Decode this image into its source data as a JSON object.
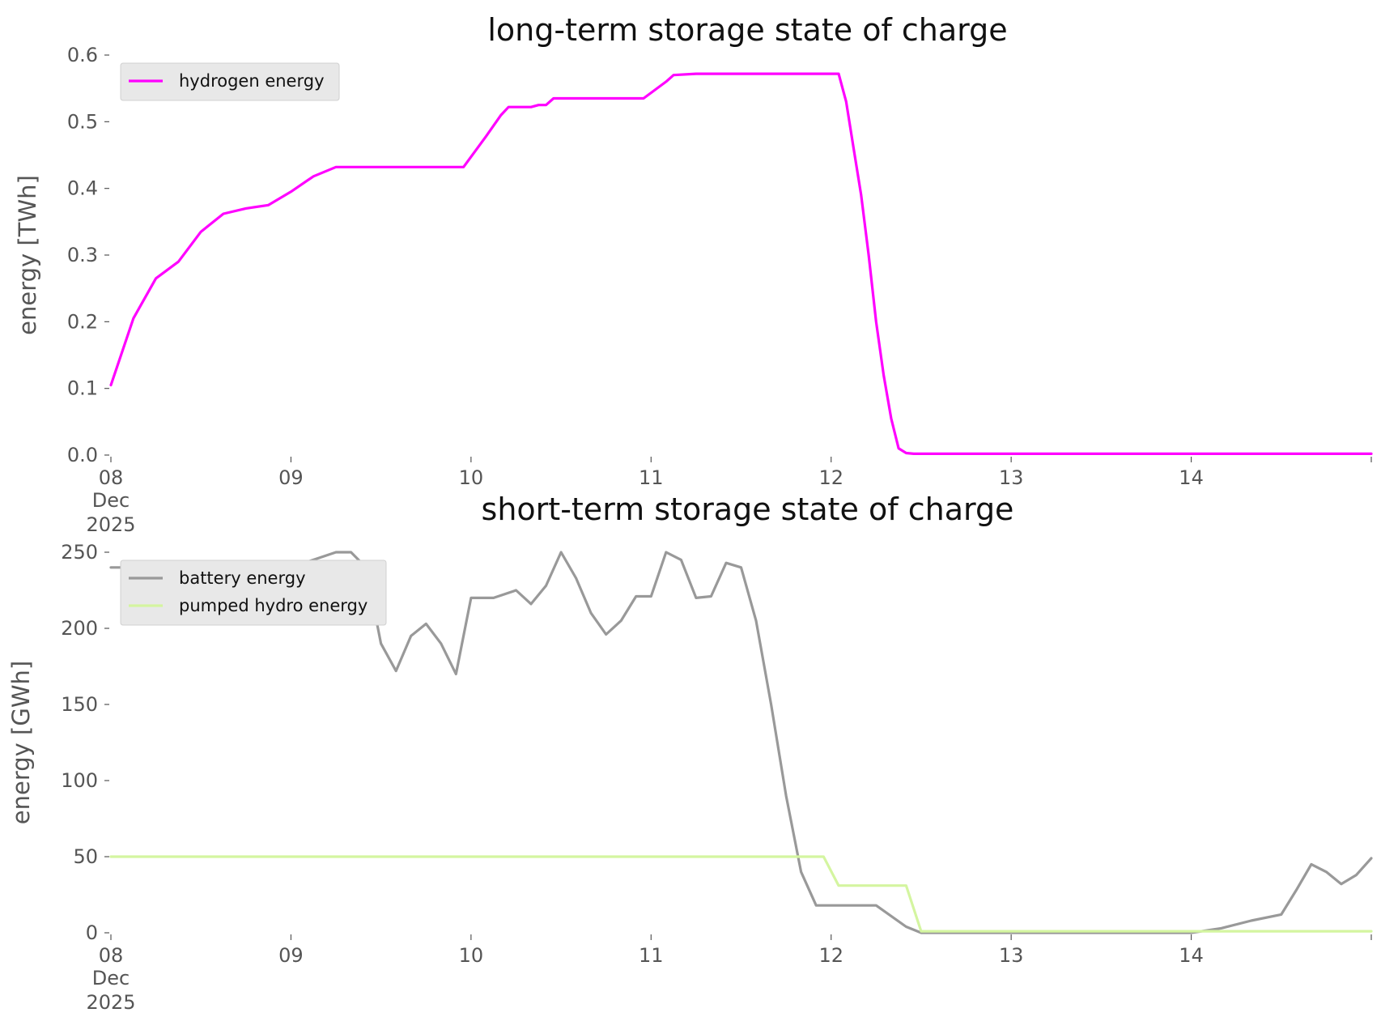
{
  "chart_data": [
    {
      "type": "line",
      "title": "long-term storage state of charge",
      "ylabel": "energy [TWh]",
      "xlabel": "",
      "xlim": [
        "2025-12-08",
        "2025-12-15"
      ],
      "ylim": [
        0,
        0.6
      ],
      "yticks": [
        "0.0",
        "0.1",
        "0.2",
        "0.3",
        "0.4",
        "0.5",
        "0.6"
      ],
      "xticks": [
        {
          "main": "08",
          "sub": "Dec",
          "sub2": "2025"
        },
        {
          "main": "09"
        },
        {
          "main": "10"
        },
        {
          "main": "11"
        },
        {
          "main": "12"
        },
        {
          "main": "13"
        },
        {
          "main": "14"
        }
      ],
      "grid": false,
      "legend_position": "top-left",
      "series": [
        {
          "name": "hydrogen energy",
          "color": "#ff00ff",
          "x": [
            "2025-12-08 00:00",
            "2025-12-08 03:00",
            "2025-12-08 06:00",
            "2025-12-08 09:00",
            "2025-12-08 12:00",
            "2025-12-08 15:00",
            "2025-12-08 18:00",
            "2025-12-08 21:00",
            "2025-12-09 00:00",
            "2025-12-09 03:00",
            "2025-12-09 06:00",
            "2025-12-09 12:00",
            "2025-12-09 18:00",
            "2025-12-09 23:00",
            "2025-12-10 02:00",
            "2025-12-10 04:00",
            "2025-12-10 05:00",
            "2025-12-10 06:00",
            "2025-12-10 08:00",
            "2025-12-10 09:00",
            "2025-12-10 10:00",
            "2025-12-10 11:00",
            "2025-12-10 12:00",
            "2025-12-10 18:00",
            "2025-12-10 23:00",
            "2025-12-11 02:00",
            "2025-12-11 03:00",
            "2025-12-11 06:00",
            "2025-12-11 12:00",
            "2025-12-11 18:00",
            "2025-12-12 01:00",
            "2025-12-12 02:00",
            "2025-12-12 03:00",
            "2025-12-12 04:00",
            "2025-12-12 05:00",
            "2025-12-12 06:00",
            "2025-12-12 07:00",
            "2025-12-12 08:00",
            "2025-12-12 09:00",
            "2025-12-12 10:00",
            "2025-12-12 11:00",
            "2025-12-13 00:00",
            "2025-12-14 00:00",
            "2025-12-15 00:00"
          ],
          "y": [
            0.105,
            0.205,
            0.265,
            0.29,
            0.335,
            0.362,
            0.37,
            0.375,
            0.395,
            0.418,
            0.432,
            0.432,
            0.432,
            0.432,
            0.478,
            0.51,
            0.522,
            0.522,
            0.522,
            0.525,
            0.525,
            0.535,
            0.535,
            0.535,
            0.535,
            0.56,
            0.57,
            0.572,
            0.572,
            0.572,
            0.572,
            0.53,
            0.46,
            0.39,
            0.3,
            0.2,
            0.12,
            0.055,
            0.01,
            0.003,
            0.002,
            0.002,
            0.002,
            0.002
          ]
        }
      ]
    },
    {
      "type": "line",
      "title": "short-term storage state of charge",
      "ylabel": "energy [GWh]",
      "xlabel": "",
      "xlim": [
        "2025-12-08",
        "2025-12-15"
      ],
      "ylim": [
        0,
        250
      ],
      "yticks": [
        "0",
        "50",
        "100",
        "150",
        "200",
        "250"
      ],
      "xticks": [
        {
          "main": "08",
          "sub": "Dec",
          "sub2": "2025"
        },
        {
          "main": "09"
        },
        {
          "main": "10"
        },
        {
          "main": "11"
        },
        {
          "main": "12"
        },
        {
          "main": "13"
        },
        {
          "main": "14"
        }
      ],
      "grid": false,
      "legend_position": "top-left",
      "series": [
        {
          "name": "battery energy",
          "color": "#999999",
          "x": [
            "2025-12-08 00:00",
            "2025-12-09 00:00",
            "2025-12-09 06:00",
            "2025-12-09 08:00",
            "2025-12-09 10:00",
            "2025-12-09 12:00",
            "2025-12-09 14:00",
            "2025-12-09 16:00",
            "2025-12-09 18:00",
            "2025-12-09 20:00",
            "2025-12-09 22:00",
            "2025-12-10 00:00",
            "2025-12-10 03:00",
            "2025-12-10 06:00",
            "2025-12-10 08:00",
            "2025-12-10 10:00",
            "2025-12-10 12:00",
            "2025-12-10 14:00",
            "2025-12-10 16:00",
            "2025-12-10 18:00",
            "2025-12-10 20:00",
            "2025-12-10 22:00",
            "2025-12-11 00:00",
            "2025-12-11 02:00",
            "2025-12-11 04:00",
            "2025-12-11 06:00",
            "2025-12-11 08:00",
            "2025-12-11 10:00",
            "2025-12-11 12:00",
            "2025-12-11 14:00",
            "2025-12-11 16:00",
            "2025-12-11 18:00",
            "2025-12-11 20:00",
            "2025-12-11 22:00",
            "2025-12-12 00:00",
            "2025-12-12 06:00",
            "2025-12-12 10:00",
            "2025-12-12 12:00",
            "2025-12-13 00:00",
            "2025-12-14 00:00",
            "2025-12-14 04:00",
            "2025-12-14 08:00",
            "2025-12-14 12:00",
            "2025-12-14 14:00",
            "2025-12-14 16:00",
            "2025-12-14 18:00",
            "2025-12-14 20:00",
            "2025-12-14 22:00",
            "2025-12-15 00:00"
          ],
          "y": [
            240,
            240,
            250,
            250,
            240,
            190,
            172,
            195,
            203,
            190,
            170,
            220,
            220,
            225,
            216,
            228,
            250,
            233,
            210,
            196,
            205,
            221,
            221,
            250,
            245,
            220,
            221,
            243,
            240,
            205,
            150,
            90,
            40,
            18,
            18,
            18,
            4,
            0,
            0,
            0,
            3,
            8,
            12,
            28,
            45,
            40,
            32,
            38,
            49
          ]
        },
        {
          "name": "pumped hydro energy",
          "color": "#d4f5a0",
          "x": [
            "2025-12-08 00:00",
            "2025-12-11 23:00",
            "2025-12-12 01:00",
            "2025-12-12 10:00",
            "2025-12-12 12:00",
            "2025-12-15 00:00"
          ],
          "y": [
            50,
            50,
            31,
            31,
            1,
            1
          ]
        }
      ]
    }
  ]
}
